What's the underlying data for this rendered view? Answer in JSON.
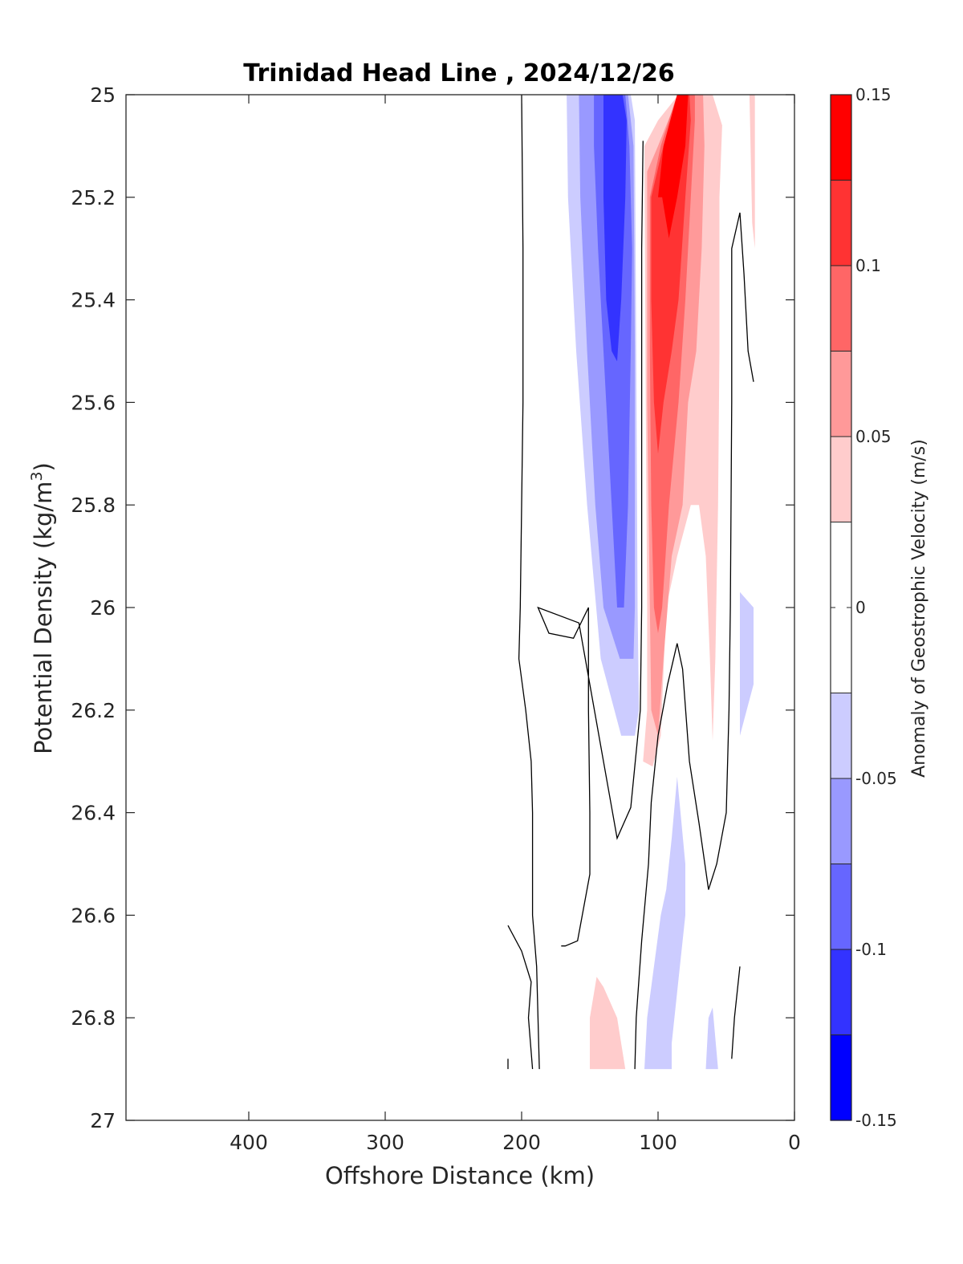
{
  "chart_data": {
    "type": "contourf",
    "title": "Trinidad Head Line , 2024/12/26",
    "xlabel": "Offshore Distance (km)",
    "ylabel_main": "Potential Density (kg/m",
    "ylabel_sup": "3",
    "ylabel_end": ")",
    "xlim": [
      490,
      0
    ],
    "ylim": [
      27,
      25
    ],
    "x_reversed": true,
    "y_reversed": true,
    "x_ticks": [
      400,
      300,
      200,
      100,
      0
    ],
    "y_ticks": [
      25,
      25.2,
      25.4,
      25.6,
      25.8,
      26,
      26.2,
      26.4,
      26.6,
      26.8,
      27
    ],
    "colorbar": {
      "label": "Anomaly of Geostrophic Velocity (m/s)",
      "range": [
        -0.15,
        0.15
      ],
      "tick_values": [
        0.15,
        0.1,
        0.05,
        0,
        -0.05,
        -0.1,
        -0.15
      ],
      "tick_labels": [
        "0.15",
        "0.1",
        "0.05",
        "0",
        "-0.05",
        "-0.1",
        "-0.15"
      ],
      "levels": [
        {
          "min": 0.125,
          "max": 0.15,
          "color": "#ff0000"
        },
        {
          "min": 0.1,
          "max": 0.125,
          "color": "#ff3333"
        },
        {
          "min": 0.075,
          "max": 0.1,
          "color": "#ff6666"
        },
        {
          "min": 0.05,
          "max": 0.075,
          "color": "#ff9999"
        },
        {
          "min": 0.025,
          "max": 0.05,
          "color": "#ffcccc"
        },
        {
          "min": -0.025,
          "max": 0.025,
          "color": "#ffffff"
        },
        {
          "min": -0.05,
          "max": -0.025,
          "color": "#ccccff"
        },
        {
          "min": -0.075,
          "max": -0.05,
          "color": "#9999ff"
        },
        {
          "min": -0.1,
          "max": -0.075,
          "color": "#6666ff"
        },
        {
          "min": -0.125,
          "max": -0.1,
          "color": "#3333ff"
        },
        {
          "min": -0.15,
          "max": -0.125,
          "color": "#0000ff"
        }
      ]
    },
    "filled_regions": [
      {
        "level": -0.025,
        "color": "#ccccff",
        "points": [
          [
            167,
            25.0
          ],
          [
            120,
            25.0
          ],
          [
            117,
            25.05
          ],
          [
            116,
            25.5
          ],
          [
            115,
            26.0
          ],
          [
            114,
            26.2
          ],
          [
            117,
            26.25
          ],
          [
            127,
            26.25
          ],
          [
            132,
            26.2
          ],
          [
            142,
            26.1
          ],
          [
            152,
            25.8
          ],
          [
            160,
            25.5
          ],
          [
            166,
            25.2
          ]
        ]
      },
      {
        "level": -0.05,
        "color": "#9999ff",
        "points": [
          [
            158,
            25.0
          ],
          [
            122,
            25.0
          ],
          [
            118,
            25.1
          ],
          [
            117,
            25.5
          ],
          [
            117,
            26.0
          ],
          [
            118,
            26.1
          ],
          [
            128,
            26.1
          ],
          [
            140,
            26.0
          ],
          [
            146,
            25.8
          ],
          [
            152,
            25.5
          ],
          [
            157,
            25.2
          ]
        ]
      },
      {
        "level": -0.075,
        "color": "#6666ff",
        "points": [
          [
            147,
            25.0
          ],
          [
            124,
            25.0
          ],
          [
            121,
            25.1
          ],
          [
            119,
            25.3
          ],
          [
            120,
            25.5
          ],
          [
            122,
            25.8
          ],
          [
            125,
            26.0
          ],
          [
            130,
            26.0
          ],
          [
            134,
            25.8
          ],
          [
            140,
            25.5
          ],
          [
            144,
            25.3
          ],
          [
            147,
            25.1
          ]
        ]
      },
      {
        "level": -0.1,
        "color": "#3333ff",
        "points": [
          [
            140,
            25.0
          ],
          [
            126,
            25.0
          ],
          [
            123,
            25.05
          ],
          [
            124,
            25.2
          ],
          [
            127,
            25.4
          ],
          [
            130,
            25.52
          ],
          [
            134,
            25.5
          ],
          [
            138,
            25.4
          ],
          [
            140,
            25.2
          ]
        ]
      },
      {
        "level": 0.025,
        "color": "#ffcccc",
        "points": [
          [
            110,
            25.1
          ],
          [
            109,
            25.6
          ],
          [
            108,
            26.0
          ],
          [
            108,
            26.2
          ],
          [
            111,
            26.3
          ],
          [
            104,
            26.31
          ],
          [
            98,
            26.25
          ],
          [
            94,
            26.0
          ],
          [
            86,
            25.9
          ],
          [
            76,
            25.8
          ],
          [
            70,
            25.8
          ],
          [
            65,
            25.9
          ],
          [
            62,
            26.1
          ],
          [
            60,
            26.26
          ],
          [
            58,
            26.1
          ],
          [
            56,
            25.8
          ],
          [
            55,
            25.5
          ],
          [
            55,
            25.2
          ],
          [
            53,
            25.06
          ],
          [
            60,
            25.0
          ],
          [
            85,
            25.0
          ],
          [
            100,
            25.05
          ]
        ]
      },
      {
        "level": 0.05,
        "color": "#ff9999",
        "points": [
          [
            108,
            25.15
          ],
          [
            108,
            25.6
          ],
          [
            106,
            26.0
          ],
          [
            105,
            26.2
          ],
          [
            100,
            26.25
          ],
          [
            96,
            26.1
          ],
          [
            90,
            25.9
          ],
          [
            82,
            25.8
          ],
          [
            78,
            25.6
          ],
          [
            72,
            25.5
          ],
          [
            68,
            25.3
          ],
          [
            66,
            25.1
          ],
          [
            67,
            25.0
          ],
          [
            85,
            25.0
          ],
          [
            100,
            25.1
          ]
        ]
      },
      {
        "level": 0.075,
        "color": "#ff6666",
        "points": [
          [
            106,
            25.2
          ],
          [
            106,
            25.5
          ],
          [
            105,
            25.8
          ],
          [
            103,
            26.0
          ],
          [
            100,
            26.05
          ],
          [
            97,
            26.0
          ],
          [
            92,
            25.8
          ],
          [
            85,
            25.6
          ],
          [
            80,
            25.4
          ],
          [
            76,
            25.2
          ],
          [
            73,
            25.05
          ],
          [
            73,
            25.0
          ],
          [
            86,
            25.0
          ],
          [
            98,
            25.1
          ]
        ]
      },
      {
        "level": 0.1,
        "color": "#ff3333",
        "points": [
          [
            105,
            25.2
          ],
          [
            105,
            25.4
          ],
          [
            103,
            25.6
          ],
          [
            100,
            25.7
          ],
          [
            96,
            25.6
          ],
          [
            90,
            25.5
          ],
          [
            85,
            25.4
          ],
          [
            80,
            25.2
          ],
          [
            76,
            25.05
          ],
          [
            77,
            25.0
          ],
          [
            86,
            25.0
          ],
          [
            98,
            25.12
          ]
        ]
      },
      {
        "level": 0.125,
        "color": "#ff0000",
        "points": [
          [
            100,
            25.2
          ],
          [
            97,
            25.2
          ],
          [
            92,
            25.28
          ],
          [
            86,
            25.2
          ],
          [
            80,
            25.1
          ],
          [
            78,
            25.0
          ],
          [
            86,
            25.0
          ],
          [
            96,
            25.1
          ]
        ]
      },
      {
        "level": -0.025,
        "color": "#ccccff",
        "points": [
          [
            40,
            25.97
          ],
          [
            40,
            26.25
          ],
          [
            30,
            26.15
          ],
          [
            30,
            26.0
          ]
        ]
      },
      {
        "level": 0.025,
        "color": "#ffcccc",
        "points": [
          [
            33,
            25.0
          ],
          [
            29,
            25.0
          ],
          [
            29,
            25.3
          ],
          [
            31,
            25.25
          ]
        ]
      },
      {
        "level": -0.025,
        "color": "#ccccff",
        "points": [
          [
            98,
            26.6
          ],
          [
            94,
            26.55
          ],
          [
            90,
            26.45
          ],
          [
            86,
            26.33
          ],
          [
            80,
            26.5
          ],
          [
            80,
            26.6
          ],
          [
            84,
            26.7
          ],
          [
            90,
            26.85
          ],
          [
            90,
            26.9
          ],
          [
            110,
            26.9
          ],
          [
            108,
            26.8
          ],
          [
            104,
            26.72
          ]
        ]
      },
      {
        "level": 0.025,
        "color": "#ffcccc",
        "points": [
          [
            150,
            26.9
          ],
          [
            150,
            26.8
          ],
          [
            145,
            26.72
          ],
          [
            140,
            26.74
          ],
          [
            130,
            26.8
          ],
          [
            124,
            26.9
          ]
        ]
      },
      {
        "level": -0.025,
        "color": "#ccccff",
        "points": [
          [
            65,
            26.9
          ],
          [
            63,
            26.8
          ],
          [
            60,
            26.78
          ],
          [
            56,
            26.9
          ]
        ]
      }
    ],
    "zero_contours": [
      {
        "points": [
          [
            200,
            25.0
          ],
          [
            199,
            25.3
          ],
          [
            199,
            25.6
          ],
          [
            200,
            25.8
          ],
          [
            201,
            26.0
          ],
          [
            202,
            26.1
          ],
          [
            197,
            26.2
          ],
          [
            193,
            26.3
          ],
          [
            192,
            26.4
          ],
          [
            192,
            26.6
          ],
          [
            189,
            26.7
          ],
          [
            187,
            26.9
          ]
        ]
      },
      {
        "points": [
          [
            171,
            26.66
          ],
          [
            168,
            26.66
          ],
          [
            159,
            26.65
          ],
          [
            150,
            26.52
          ],
          [
            150,
            26.4
          ],
          [
            151,
            26.2
          ],
          [
            151,
            26.0
          ],
          [
            162,
            26.06
          ],
          [
            180,
            26.05
          ],
          [
            188,
            26.0
          ],
          [
            158,
            26.03
          ],
          [
            140,
            26.3
          ],
          [
            130,
            26.45
          ],
          [
            120,
            26.39
          ],
          [
            113,
            26.2
          ],
          [
            112,
            26.0
          ],
          [
            112,
            25.7
          ],
          [
            112,
            25.3
          ],
          [
            111,
            25.09
          ]
        ]
      },
      {
        "points": [
          [
            210,
            26.62
          ],
          [
            200,
            26.67
          ],
          [
            193,
            26.73
          ],
          [
            195,
            26.8
          ],
          [
            192,
            26.9
          ]
        ]
      },
      {
        "points": [
          [
            117,
            26.9
          ],
          [
            116,
            26.8
          ],
          [
            112,
            26.65
          ],
          [
            107,
            26.5
          ],
          [
            105,
            26.38
          ],
          [
            100,
            26.25
          ],
          [
            93,
            26.15
          ],
          [
            86,
            26.07
          ],
          [
            82,
            26.12
          ],
          [
            77,
            26.3
          ],
          [
            70,
            26.42
          ],
          [
            63,
            26.55
          ],
          [
            57,
            26.5
          ],
          [
            50,
            26.4
          ],
          [
            48,
            26.2
          ],
          [
            47,
            26.0
          ],
          [
            46,
            25.6
          ],
          [
            46,
            25.3
          ],
          [
            40,
            25.23
          ],
          [
            37,
            25.35
          ],
          [
            34,
            25.5
          ],
          [
            30,
            25.56
          ]
        ]
      },
      {
        "points": [
          [
            40,
            26.7
          ],
          [
            44,
            26.8
          ],
          [
            46,
            26.88
          ]
        ]
      },
      {
        "points": [
          [
            210,
            26.9
          ],
          [
            210,
            26.88
          ]
        ]
      }
    ]
  }
}
